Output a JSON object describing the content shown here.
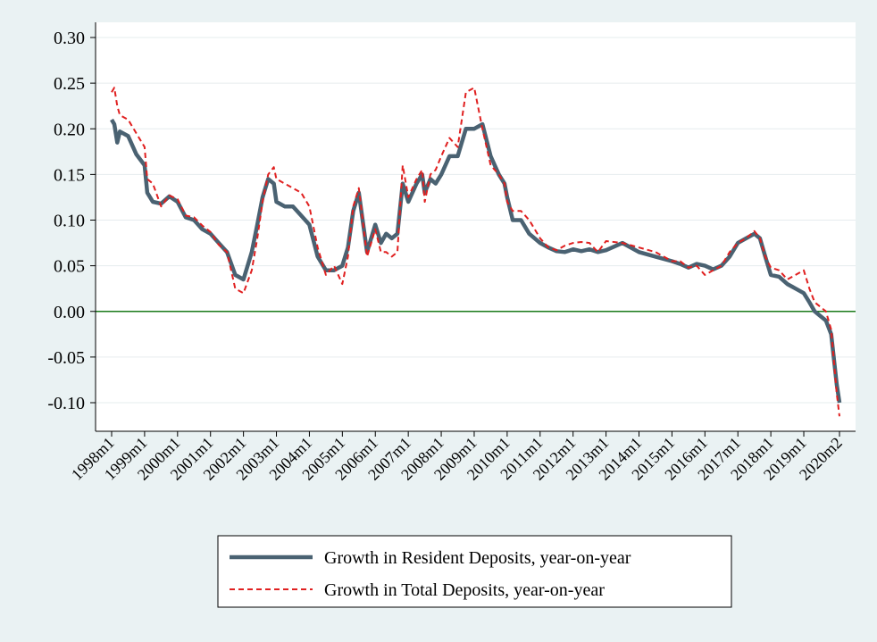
{
  "chart_data": {
    "type": "line",
    "title": "",
    "xlabel": "",
    "ylabel": "",
    "ylim": [
      -0.13,
      0.31
    ],
    "yticks": [
      "0.30",
      "0.25",
      "0.20",
      "0.15",
      "0.10",
      "0.05",
      "0.00",
      "-0.05",
      "-0.10"
    ],
    "ytick_values": [
      0.3,
      0.25,
      0.2,
      0.15,
      0.1,
      0.05,
      0.0,
      -0.05,
      -0.1
    ],
    "xticks": [
      "1998m1",
      "1999m1",
      "2000m1",
      "2001m1",
      "2002m1",
      "2003m1",
      "2004m1",
      "2005m1",
      "2006m1",
      "2007m1",
      "2008m1",
      "2009m1",
      "2010m1",
      "2011m1",
      "2012m1",
      "2013m1",
      "2014m1",
      "2015m1",
      "2016m1",
      "2017m1",
      "2018m1",
      "2019m1",
      "2020m2"
    ],
    "xtick_values": [
      1998.0,
      1999.0,
      2000.0,
      2001.0,
      2002.0,
      2003.0,
      2004.0,
      2005.0,
      2006.0,
      2007.0,
      2008.0,
      2009.0,
      2010.0,
      2011.0,
      2012.0,
      2013.0,
      2014.0,
      2015.0,
      2016.0,
      2017.0,
      2018.0,
      2019.0,
      2020.083
    ],
    "xlim": [
      1998.0,
      2020.083
    ],
    "grid": true,
    "legend_position": "bottom",
    "reference_line": {
      "y": 0.0,
      "color": "#1a7a1a"
    },
    "series": [
      {
        "name": "Growth in Resident Deposits, year-on-year",
        "color": "#4a6272",
        "style": "solid",
        "x": [
          1998.0,
          1998.08,
          1998.17,
          1998.25,
          1998.5,
          1998.75,
          1999.0,
          1999.08,
          1999.25,
          1999.5,
          1999.75,
          2000.0,
          2000.25,
          2000.5,
          2000.75,
          2001.0,
          2001.25,
          2001.5,
          2001.75,
          2002.0,
          2002.25,
          2002.42,
          2002.58,
          2002.75,
          2002.92,
          2003.0,
          2003.25,
          2003.5,
          2003.75,
          2004.0,
          2004.25,
          2004.5,
          2004.75,
          2005.0,
          2005.17,
          2005.33,
          2005.5,
          2005.75,
          2006.0,
          2006.17,
          2006.33,
          2006.5,
          2006.67,
          2006.83,
          2007.0,
          2007.25,
          2007.42,
          2007.5,
          2007.67,
          2007.83,
          2008.0,
          2008.25,
          2008.5,
          2008.75,
          2009.0,
          2009.25,
          2009.5,
          2009.75,
          2009.92,
          2010.0,
          2010.17,
          2010.42,
          2010.67,
          2011.0,
          2011.25,
          2011.5,
          2011.75,
          2012.0,
          2012.25,
          2012.5,
          2012.75,
          2013.0,
          2013.5,
          2014.0,
          2014.5,
          2015.0,
          2015.25,
          2015.5,
          2015.75,
          2016.0,
          2016.25,
          2016.5,
          2016.75,
          2017.0,
          2017.25,
          2017.5,
          2017.67,
          2017.83,
          2018.0,
          2018.25,
          2018.5,
          2018.75,
          2019.0,
          2019.17,
          2019.33,
          2019.5,
          2019.67,
          2019.83,
          2020.0,
          2020.083
        ],
        "y": [
          0.21,
          0.205,
          0.185,
          0.197,
          0.192,
          0.172,
          0.16,
          0.13,
          0.12,
          0.118,
          0.126,
          0.12,
          0.103,
          0.1,
          0.09,
          0.085,
          0.075,
          0.065,
          0.04,
          0.035,
          0.065,
          0.095,
          0.125,
          0.145,
          0.14,
          0.12,
          0.115,
          0.115,
          0.105,
          0.095,
          0.06,
          0.045,
          0.045,
          0.05,
          0.07,
          0.11,
          0.13,
          0.065,
          0.095,
          0.075,
          0.085,
          0.08,
          0.085,
          0.14,
          0.12,
          0.14,
          0.15,
          0.13,
          0.145,
          0.14,
          0.15,
          0.17,
          0.17,
          0.2,
          0.2,
          0.205,
          0.17,
          0.15,
          0.14,
          0.125,
          0.1,
          0.1,
          0.085,
          0.075,
          0.07,
          0.066,
          0.065,
          0.068,
          0.066,
          0.068,
          0.065,
          0.067,
          0.075,
          0.065,
          0.06,
          0.055,
          0.052,
          0.048,
          0.052,
          0.05,
          0.046,
          0.05,
          0.06,
          0.075,
          0.08,
          0.085,
          0.08,
          0.06,
          0.04,
          0.038,
          0.03,
          0.025,
          0.02,
          0.01,
          0.0,
          -0.005,
          -0.01,
          -0.025,
          -0.08,
          -0.1
        ]
      },
      {
        "name": "Growth in Total Deposits, year-on-year",
        "color": "#e02020",
        "style": "dashed",
        "x": [
          1998.0,
          1998.08,
          1998.17,
          1998.25,
          1998.5,
          1998.75,
          1999.0,
          1999.08,
          1999.25,
          1999.5,
          1999.75,
          2000.0,
          2000.25,
          2000.5,
          2000.75,
          2001.0,
          2001.25,
          2001.5,
          2001.75,
          2002.0,
          2002.25,
          2002.42,
          2002.58,
          2002.75,
          2002.92,
          2003.0,
          2003.25,
          2003.5,
          2003.75,
          2004.0,
          2004.25,
          2004.5,
          2004.75,
          2005.0,
          2005.17,
          2005.33,
          2005.5,
          2005.75,
          2006.0,
          2006.17,
          2006.33,
          2006.5,
          2006.67,
          2006.83,
          2007.0,
          2007.25,
          2007.42,
          2007.5,
          2007.67,
          2007.83,
          2008.0,
          2008.25,
          2008.5,
          2008.75,
          2009.0,
          2009.25,
          2009.5,
          2009.75,
          2009.92,
          2010.0,
          2010.17,
          2010.42,
          2010.67,
          2011.0,
          2011.25,
          2011.5,
          2011.75,
          2012.0,
          2012.25,
          2012.5,
          2012.75,
          2013.0,
          2013.5,
          2014.0,
          2014.5,
          2015.0,
          2015.25,
          2015.5,
          2015.75,
          2016.0,
          2016.25,
          2016.5,
          2016.75,
          2017.0,
          2017.25,
          2017.5,
          2017.67,
          2017.83,
          2018.0,
          2018.25,
          2018.5,
          2018.75,
          2019.0,
          2019.17,
          2019.33,
          2019.5,
          2019.67,
          2019.83,
          2020.0,
          2020.083
        ],
        "y": [
          0.24,
          0.245,
          0.225,
          0.215,
          0.21,
          0.195,
          0.18,
          0.145,
          0.14,
          0.115,
          0.127,
          0.123,
          0.105,
          0.103,
          0.094,
          0.087,
          0.073,
          0.065,
          0.025,
          0.02,
          0.045,
          0.08,
          0.12,
          0.15,
          0.158,
          0.145,
          0.14,
          0.135,
          0.13,
          0.115,
          0.07,
          0.04,
          0.05,
          0.03,
          0.06,
          0.115,
          0.135,
          0.06,
          0.09,
          0.065,
          0.065,
          0.06,
          0.065,
          0.16,
          0.125,
          0.145,
          0.155,
          0.12,
          0.15,
          0.155,
          0.17,
          0.19,
          0.18,
          0.24,
          0.245,
          0.2,
          0.16,
          0.15,
          0.14,
          0.12,
          0.11,
          0.11,
          0.1,
          0.08,
          0.07,
          0.067,
          0.072,
          0.075,
          0.076,
          0.075,
          0.065,
          0.077,
          0.075,
          0.07,
          0.065,
          0.055,
          0.055,
          0.048,
          0.05,
          0.04,
          0.045,
          0.05,
          0.065,
          0.075,
          0.08,
          0.088,
          0.08,
          0.06,
          0.048,
          0.045,
          0.035,
          0.04,
          0.045,
          0.025,
          0.01,
          0.005,
          0.0,
          -0.02,
          -0.09,
          -0.115
        ]
      }
    ]
  }
}
